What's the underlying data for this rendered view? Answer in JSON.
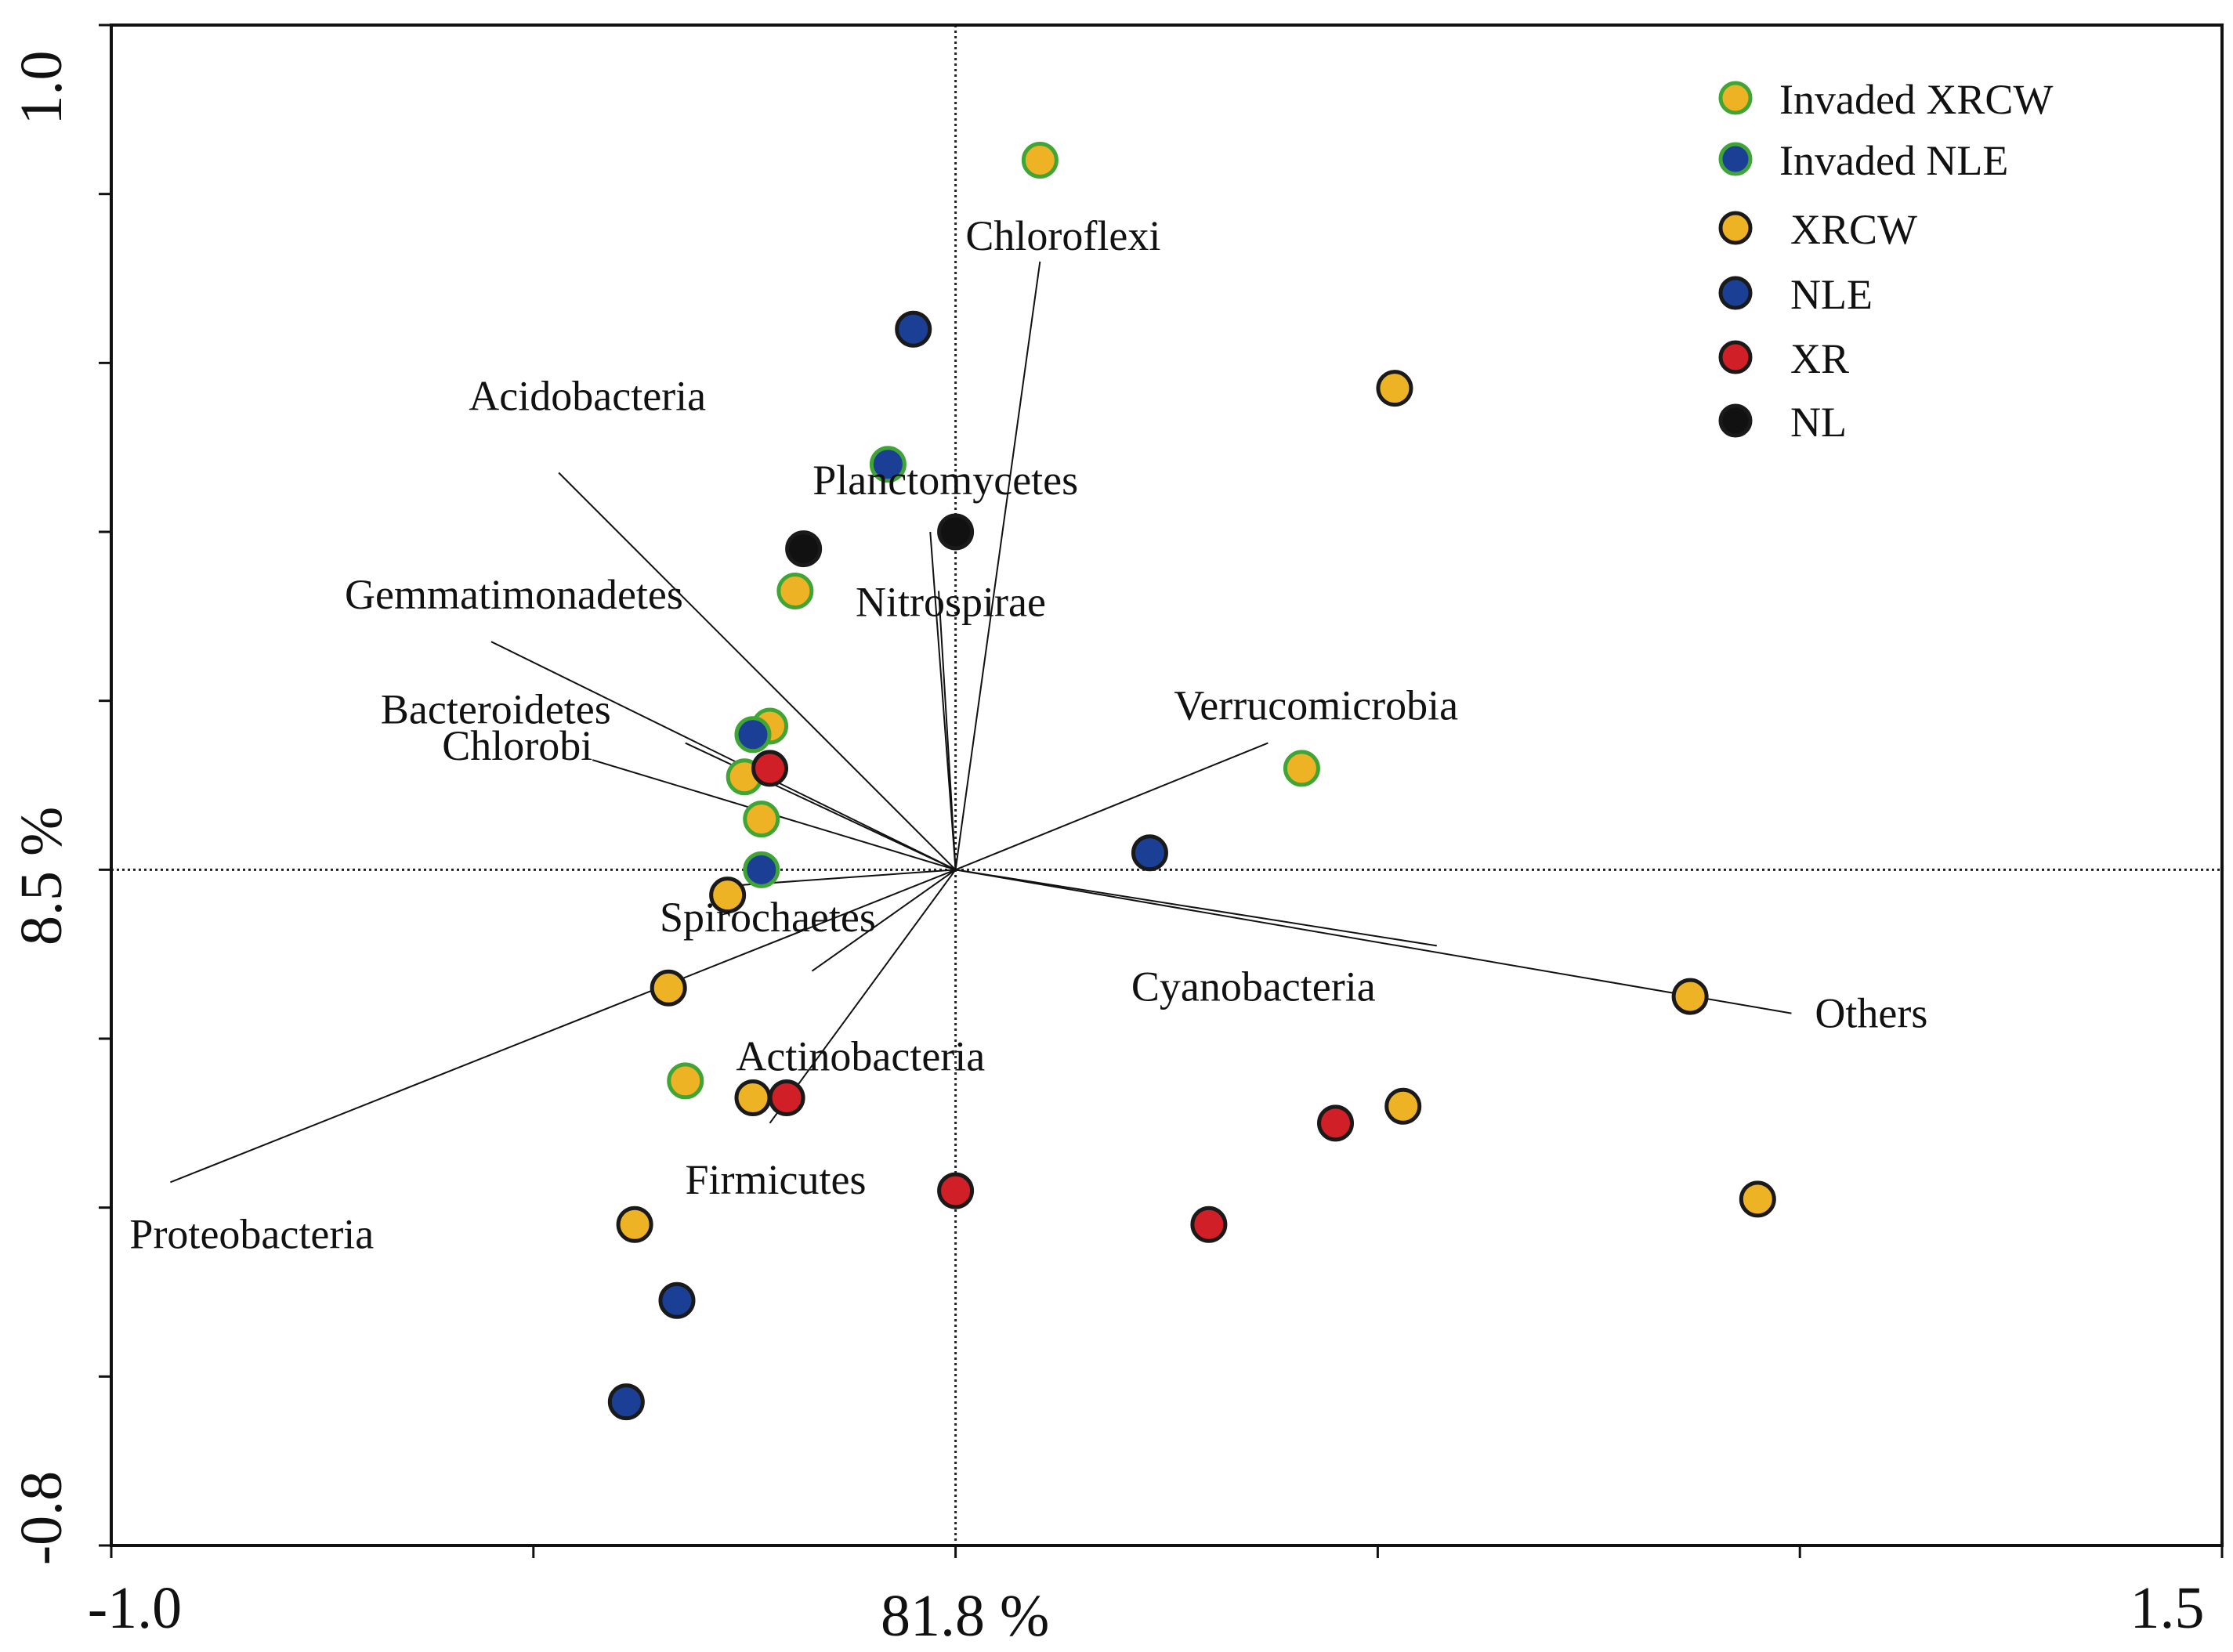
{
  "chart_data": {
    "type": "scatter",
    "subtype": "ordination biplot",
    "xlim": [
      -1.0,
      1.5
    ],
    "ylim": [
      -0.8,
      1.0
    ],
    "xaxis": {
      "min_label": "-1.0",
      "center_label": "81.8 %",
      "max_label": "1.5",
      "minor_tick_step": 0.5
    },
    "yaxis": {
      "min_label": "-0.8",
      "center_label": "8.5 %",
      "max_label": "1.0",
      "minor_tick_step": 0.2
    },
    "grid": false,
    "reference_lines": {
      "x": 0,
      "y": 0,
      "style": "dotted"
    },
    "legend_position": "top-right",
    "legend": [
      {
        "label": "Invaded XRCW",
        "fill": "#EDB325",
        "edge": "#3FA535"
      },
      {
        "label": "Invaded NLE",
        "fill": "#1B3F95",
        "edge": "#3FA535"
      },
      {
        "label": "XRCW",
        "fill": "#EDB325",
        "edge": "#1a1a1a"
      },
      {
        "label": "NLE",
        "fill": "#1B3F95",
        "edge": "#1a1a1a"
      },
      {
        "label": "XR",
        "fill": "#D01F26",
        "edge": "#1a1a1a"
      },
      {
        "label": "NL",
        "fill": "#111111",
        "edge": "#1a1a1a"
      }
    ],
    "series": [
      {
        "name": "Invaded XRCW",
        "points": [
          [
            0.1,
            0.84
          ],
          [
            -0.19,
            0.33
          ],
          [
            -0.22,
            0.17
          ],
          [
            -0.25,
            0.11
          ],
          [
            -0.23,
            0.06
          ],
          [
            0.41,
            0.12
          ],
          [
            -0.32,
            -0.25
          ]
        ]
      },
      {
        "name": "Invaded NLE",
        "points": [
          [
            -0.08,
            0.48
          ],
          [
            -0.24,
            0.16
          ],
          [
            -0.23,
            0.0
          ]
        ]
      },
      {
        "name": "XRCW",
        "points": [
          [
            0.52,
            0.57
          ],
          [
            -0.27,
            -0.03
          ],
          [
            -0.34,
            -0.14
          ],
          [
            -0.24,
            -0.27
          ],
          [
            0.53,
            -0.28
          ],
          [
            0.87,
            -0.15
          ],
          [
            0.95,
            -0.39
          ],
          [
            -0.38,
            -0.42
          ]
        ]
      },
      {
        "name": "NLE",
        "points": [
          [
            -0.05,
            0.64
          ],
          [
            0.23,
            0.02
          ],
          [
            -0.33,
            -0.51
          ],
          [
            -0.39,
            -0.63
          ]
        ]
      },
      {
        "name": "XR",
        "points": [
          [
            -0.22,
            0.12
          ],
          [
            -0.2,
            -0.27
          ],
          [
            0.0,
            -0.38
          ],
          [
            0.45,
            -0.3
          ],
          [
            0.3,
            -0.42
          ]
        ]
      },
      {
        "name": "NL",
        "points": [
          [
            -0.18,
            0.38
          ],
          [
            0.0,
            0.4
          ]
        ]
      }
    ],
    "vectors": [
      {
        "name": "Chloroflexi",
        "end": [
          0.1,
          0.72
        ],
        "label": "Chloroflexi",
        "label_anchor": "start"
      },
      {
        "name": "Acidobacteria",
        "end": [
          -0.47,
          0.47
        ],
        "label": "Acidobacteria",
        "label_anchor": "end"
      },
      {
        "name": "Planctomycetes",
        "end": [
          -0.03,
          0.4
        ],
        "label": "Planctomycetes",
        "label_anchor": "start"
      },
      {
        "name": "Nitrospirae",
        "end": [
          -0.02,
          0.33
        ],
        "label": "Nitrospirae",
        "label_anchor": "start"
      },
      {
        "name": "Gemmatimonadetes",
        "end": [
          -0.55,
          0.27
        ],
        "label": "Gemmatimonadetes",
        "label_anchor": "end"
      },
      {
        "name": "Bacteroidetes",
        "end": [
          -0.32,
          0.15
        ],
        "label": "Bacteroidetes",
        "label_anchor": "end"
      },
      {
        "name": "Chlorobi",
        "end": [
          -0.43,
          0.13
        ],
        "label": "Chlorobi",
        "label_anchor": "end"
      },
      {
        "name": "Verrucomicrobia",
        "end": [
          0.37,
          0.15
        ],
        "label": "Verrucomicrobia",
        "label_anchor": "start"
      },
      {
        "name": "Spirochaetes",
        "end": [
          -0.28,
          -0.02
        ],
        "label": "Spirochaetes",
        "label_anchor": "end"
      },
      {
        "name": "Cyanobacteria",
        "end": [
          0.57,
          -0.09
        ],
        "label": "Cyanobacteria",
        "label_anchor": "start"
      },
      {
        "name": "Others",
        "end": [
          0.99,
          -0.17
        ],
        "label": "Others",
        "label_anchor": "start"
      },
      {
        "name": "Actinobacteria",
        "end": [
          -0.17,
          -0.12
        ],
        "label": "Actinobacteria",
        "label_anchor": "start"
      },
      {
        "name": "Firmicutes",
        "end": [
          -0.22,
          -0.3
        ],
        "label": "Firmicutes",
        "label_anchor": "start"
      },
      {
        "name": "Proteobacteria",
        "end": [
          -0.93,
          -0.37
        ],
        "label": "Proteobacteria",
        "label_anchor": "start"
      }
    ]
  }
}
